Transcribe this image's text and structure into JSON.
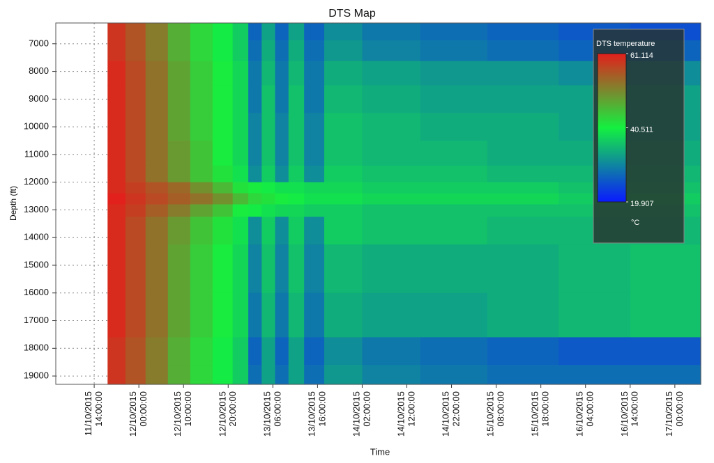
{
  "chart_data": {
    "type": "heatmap",
    "title": "DTS Map",
    "x_label": "Time",
    "y_label": "Depth (ft)",
    "x": [
      "2015-10-11T19:00",
      "2015-10-11T23:00",
      "2015-10-12T04:00",
      "2015-10-12T09:00",
      "2015-10-12T14:00",
      "2015-10-12T19:00",
      "2015-10-12T23:00",
      "2015-10-13T02:00",
      "2015-10-13T05:00",
      "2015-10-13T08:00",
      "2015-10-13T11:00",
      "2015-10-13T15:00",
      "2015-10-13T20:00",
      "2015-10-14T08:00",
      "2015-10-14T22:00",
      "2015-10-15T14:00",
      "2015-10-16T06:00",
      "2015-10-16T22:00"
    ],
    "y": [
      6500,
      7250,
      8000,
      9000,
      10000,
      11000,
      11800,
      12200,
      12600,
      13000,
      13500,
      15000,
      17000,
      18200,
      19000
    ],
    "z": [
      [
        59,
        56,
        52,
        47,
        43,
        40,
        37,
        27,
        33,
        27,
        33,
        27,
        31,
        29,
        28,
        27,
        26,
        25
      ],
      [
        59,
        56,
        52,
        47,
        43,
        40,
        37,
        28,
        34,
        28,
        34,
        28,
        32,
        30,
        29,
        28,
        27,
        27
      ],
      [
        60,
        57,
        53,
        48,
        44,
        41,
        38,
        29,
        35,
        29,
        35,
        29,
        34,
        33,
        32,
        32,
        31,
        31
      ],
      [
        60,
        57,
        53,
        48,
        44,
        41,
        38,
        29,
        36,
        29,
        36,
        29,
        35,
        34,
        33,
        33,
        33,
        33
      ],
      [
        60,
        57,
        53,
        48,
        44,
        41,
        38,
        30,
        36,
        30,
        36,
        30,
        36,
        35,
        34,
        34,
        33,
        33
      ],
      [
        60,
        57,
        53,
        49,
        45,
        41,
        38,
        30,
        36,
        30,
        36,
        30,
        36,
        35,
        35,
        34,
        34,
        34
      ],
      [
        60,
        57,
        53,
        49,
        45,
        42,
        39,
        31,
        37,
        31,
        37,
        31,
        37,
        36,
        36,
        35,
        35,
        35
      ],
      [
        60,
        58,
        56,
        54,
        50,
        46,
        42,
        41,
        40,
        39,
        39,
        38,
        38,
        37,
        37,
        37,
        36,
        36
      ],
      [
        61,
        59,
        57,
        55,
        53,
        50,
        46,
        43,
        42,
        41,
        40,
        39,
        39,
        38,
        38,
        38,
        37,
        37
      ],
      [
        60,
        58,
        55,
        52,
        48,
        45,
        41,
        40,
        39,
        38,
        38,
        37,
        37,
        36,
        36,
        36,
        36,
        36
      ],
      [
        60,
        57,
        53,
        49,
        45,
        42,
        39,
        31,
        37,
        31,
        37,
        31,
        37,
        36,
        36,
        35,
        35,
        35
      ],
      [
        60,
        57,
        53,
        48,
        44,
        41,
        38,
        30,
        36,
        30,
        36,
        30,
        35,
        34,
        34,
        34,
        35,
        36
      ],
      [
        60,
        57,
        53,
        48,
        44,
        41,
        38,
        29,
        35,
        29,
        35,
        29,
        34,
        33,
        33,
        34,
        35,
        36
      ],
      [
        59,
        56,
        52,
        47,
        43,
        40,
        37,
        27,
        33,
        27,
        33,
        27,
        31,
        29,
        28,
        27,
        26,
        26
      ],
      [
        59,
        56,
        52,
        47,
        43,
        40,
        37,
        28,
        33,
        28,
        33,
        28,
        32,
        30,
        29,
        28,
        28,
        28
      ]
    ],
    "xlim": [
      "2015-10-11T05:24",
      "2015-10-17T05:48"
    ],
    "xticks": [
      {
        "value": "2015-10-11T14:00",
        "label": "11/10/2015 14:00:00"
      },
      {
        "value": "2015-10-12T00:00",
        "label": "12/10/2015 00:00:00"
      },
      {
        "value": "2015-10-12T10:00",
        "label": "12/10/2015 10:00:00"
      },
      {
        "value": "2015-10-12T20:00",
        "label": "12/10/2015 20:00:00"
      },
      {
        "value": "2015-10-13T06:00",
        "label": "13/10/2015 06:00:00"
      },
      {
        "value": "2015-10-13T16:00",
        "label": "13/10/2015 16:00:00"
      },
      {
        "value": "2015-10-14T02:00",
        "label": "14/10/2015 02:00:00"
      },
      {
        "value": "2015-10-14T12:00",
        "label": "14/10/2015 12:00:00"
      },
      {
        "value": "2015-10-14T22:00",
        "label": "14/10/2015 22:00:00"
      },
      {
        "value": "2015-10-15T08:00",
        "label": "15/10/2015 08:00:00"
      },
      {
        "value": "2015-10-15T18:00",
        "label": "15/10/2015 18:00:00"
      },
      {
        "value": "2015-10-16T04:00",
        "label": "16/10/2015 04:00:00"
      },
      {
        "value": "2015-10-16T14:00",
        "label": "16/10/2015 14:00:00"
      },
      {
        "value": "2015-10-17T00:00",
        "label": "17/10/2015 00:00:00"
      }
    ],
    "ylim": [
      6250,
      19300
    ],
    "yticks": [
      7000,
      8000,
      9000,
      10000,
      11000,
      12000,
      13000,
      14000,
      15000,
      16000,
      17000,
      18000,
      19000
    ],
    "y_inverted": true,
    "grid": true,
    "colorbar": {
      "title": "DTS temperature",
      "unit": "°C",
      "zlim": [
        19.907,
        61.114
      ],
      "zticks": [
        19.907,
        40.511,
        61.114
      ],
      "colors": [
        "#0a1aff",
        "#14f040",
        "#e3201c"
      ]
    }
  }
}
